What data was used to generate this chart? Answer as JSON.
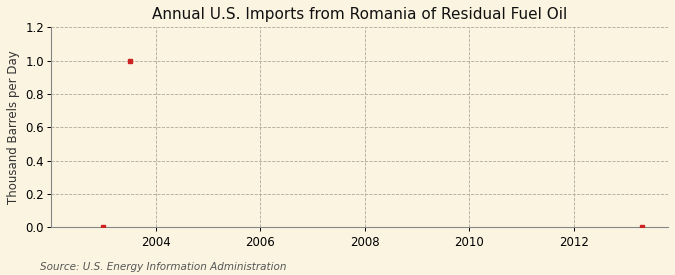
{
  "title": "Annual U.S. Imports from Romania of Residual Fuel Oil",
  "ylabel": "Thousand Barrels per Day",
  "source": "Source: U.S. Energy Information Administration",
  "xlim": [
    2002.0,
    2013.8
  ],
  "ylim": [
    0.0,
    1.2
  ],
  "xticks": [
    2004,
    2006,
    2008,
    2010,
    2012
  ],
  "yticks": [
    0.0,
    0.2,
    0.4,
    0.6,
    0.8,
    1.0,
    1.2
  ],
  "data_x": [
    2003,
    2003.5,
    2013.3
  ],
  "data_y": [
    0.0,
    1.0,
    0.0
  ],
  "marker_color": "#cc2222",
  "marker": "s",
  "marker_size": 3.5,
  "bg_color": "#faf4e1",
  "grid_color": "#b0a898",
  "title_fontsize": 11,
  "label_fontsize": 8.5,
  "tick_fontsize": 8.5,
  "source_fontsize": 7.5
}
